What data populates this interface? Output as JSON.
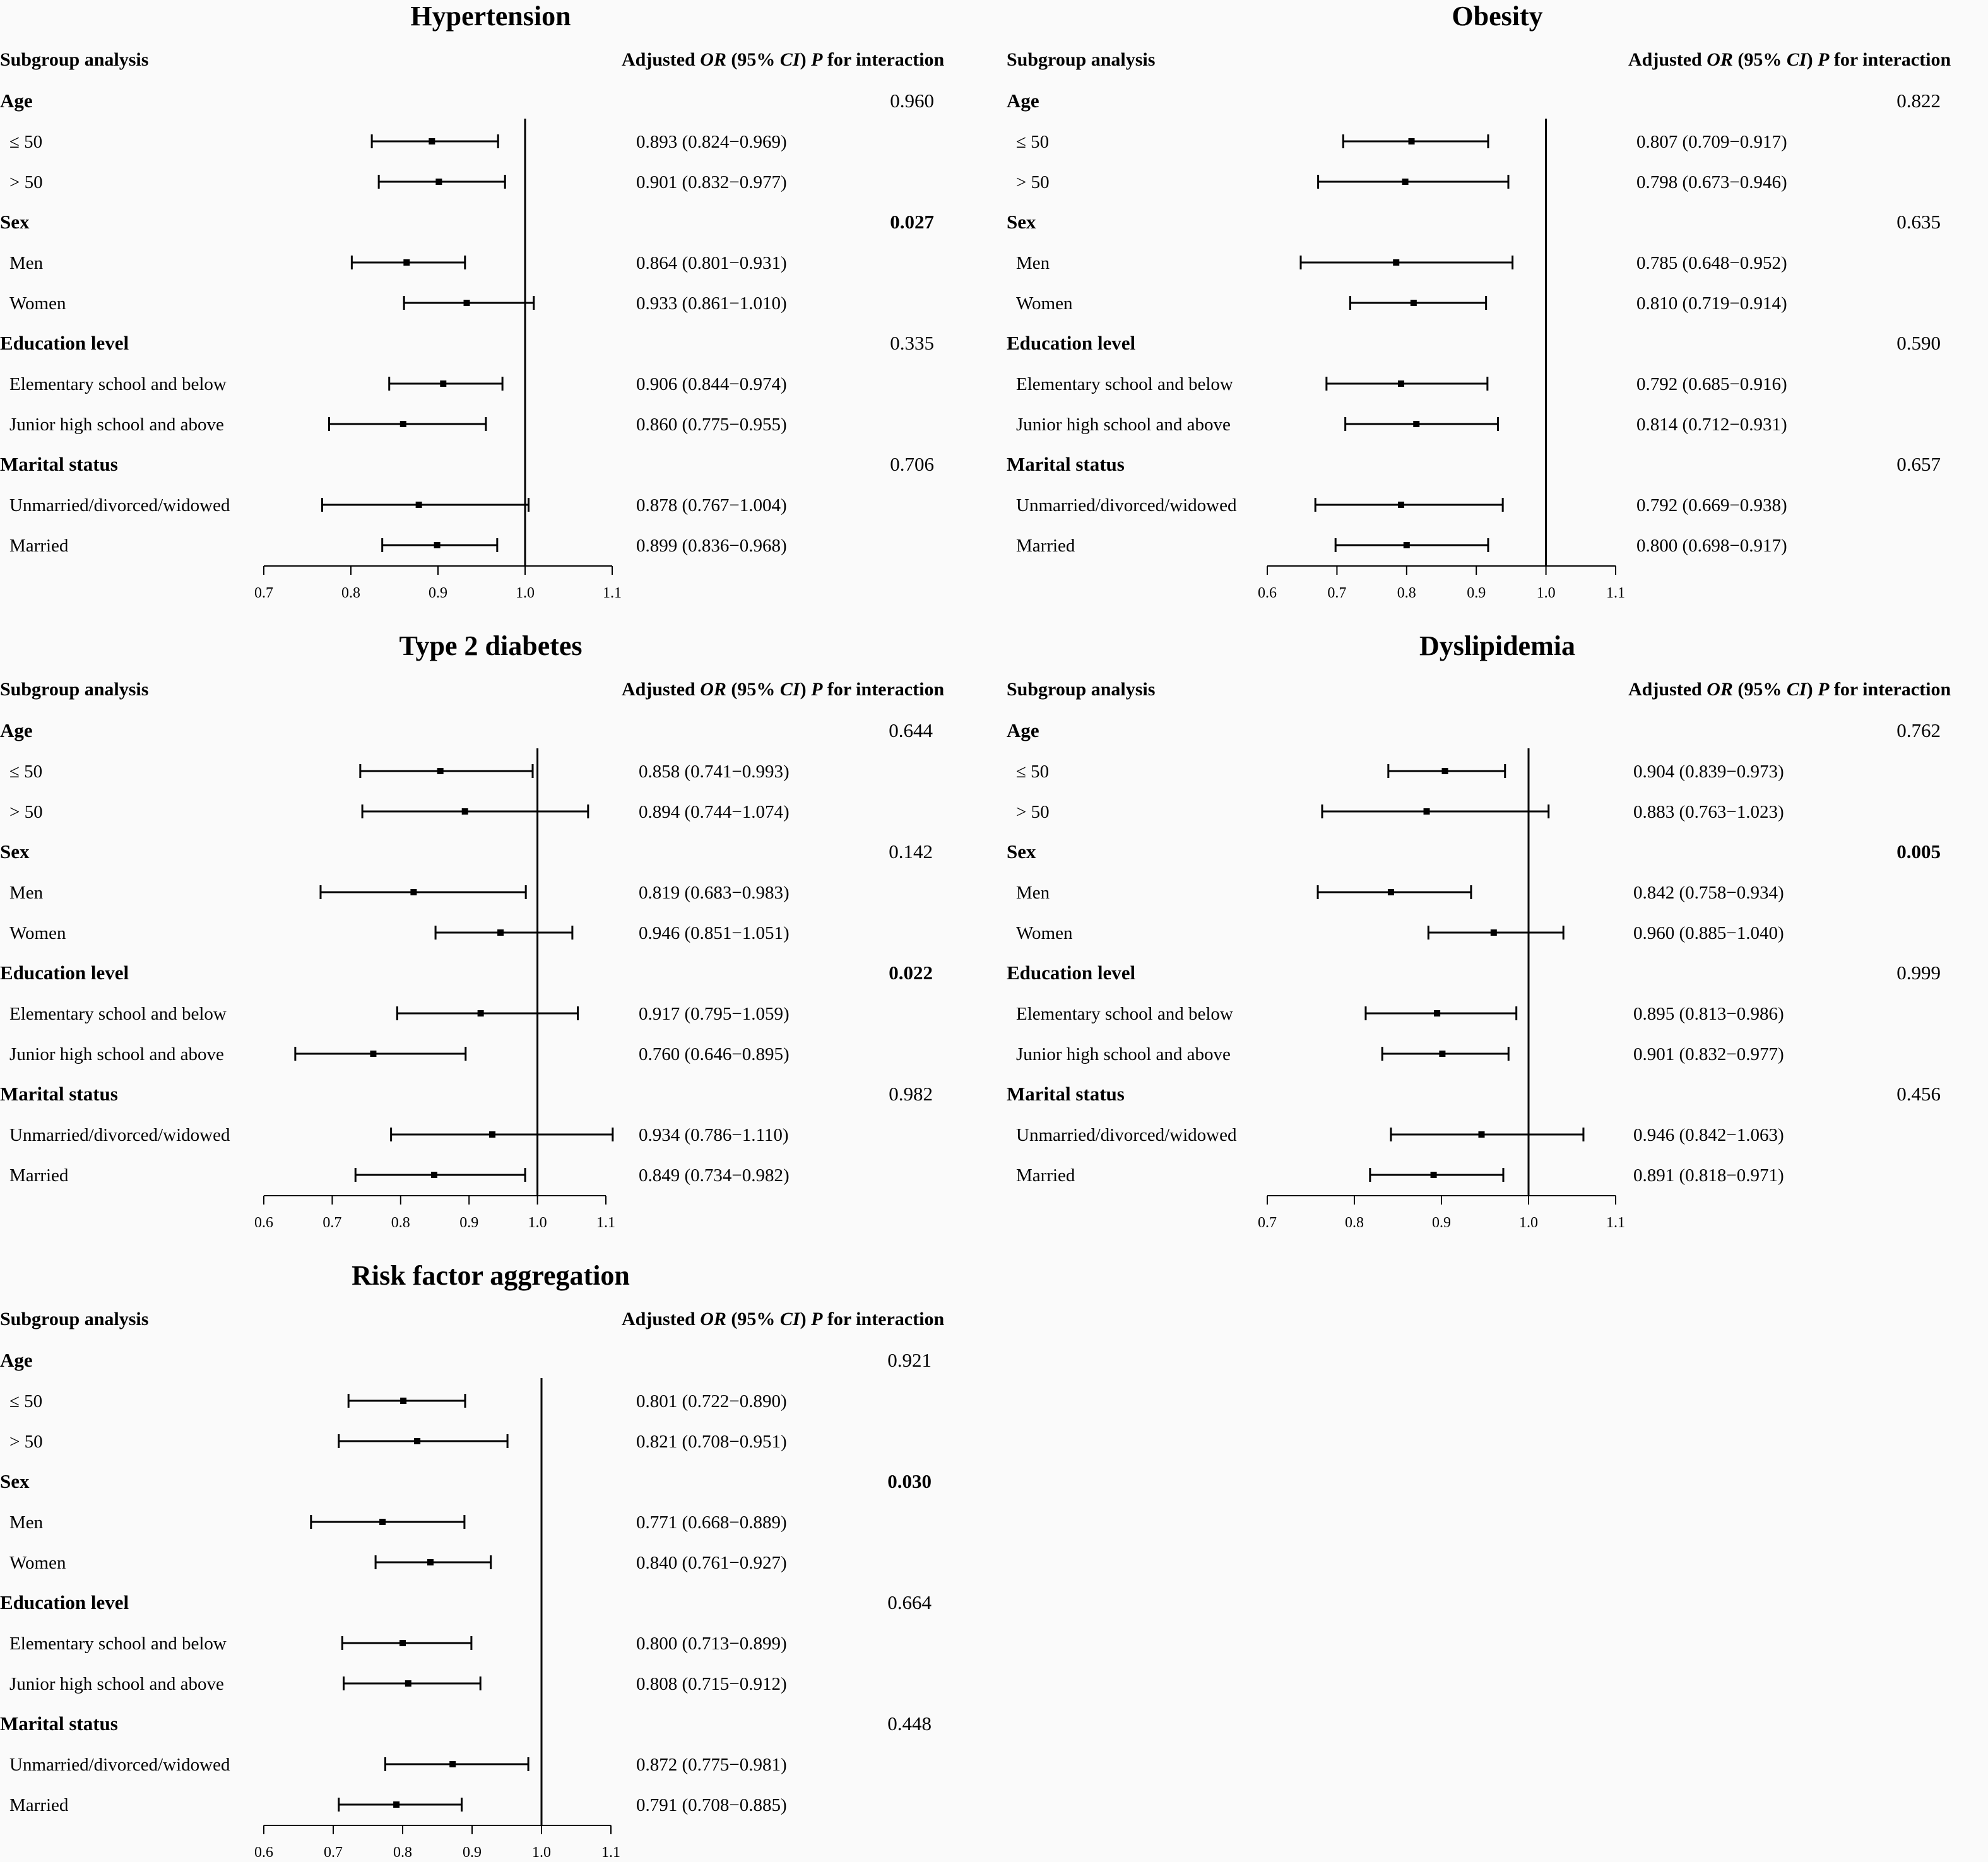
{
  "headers": {
    "subgroup": "Subgroup analysis",
    "or_prefix": "Adjusted ",
    "or_italic": "OR",
    "ci_open": " (95% ",
    "ci_italic": "CI",
    "ci_close": ") ",
    "p_italic": "P",
    "p_suffix": " for interaction"
  },
  "chart_data": [
    {
      "type": "forest",
      "title": "Hypertension",
      "axis": {
        "min": 0.7,
        "max": 1.1,
        "ticks": [
          "0.7",
          "0.8",
          "0.9",
          "1.0",
          "1.1"
        ],
        "ref": 1.0
      },
      "groups": [
        {
          "name": "Age",
          "p": "0.960",
          "p_bold": false,
          "rows": [
            {
              "label": "≤ 50",
              "or": 0.893,
              "lo": 0.824,
              "hi": 0.969,
              "text": "0.893 (0.824−0.969)"
            },
            {
              "label": "> 50",
              "or": 0.901,
              "lo": 0.832,
              "hi": 0.977,
              "text": "0.901 (0.832−0.977)"
            }
          ]
        },
        {
          "name": "Sex",
          "p": "0.027",
          "p_bold": true,
          "rows": [
            {
              "label": "Men",
              "or": 0.864,
              "lo": 0.801,
              "hi": 0.931,
              "text": "0.864 (0.801−0.931)"
            },
            {
              "label": "Women",
              "or": 0.933,
              "lo": 0.861,
              "hi": 1.01,
              "text": "0.933 (0.861−1.010)"
            }
          ]
        },
        {
          "name": "Education level",
          "p": "0.335",
          "p_bold": false,
          "rows": [
            {
              "label": "Elementary school and below",
              "or": 0.906,
              "lo": 0.844,
              "hi": 0.974,
              "text": "0.906 (0.844−0.974)"
            },
            {
              "label": "Junior high school and above",
              "or": 0.86,
              "lo": 0.775,
              "hi": 0.955,
              "text": "0.860 (0.775−0.955)"
            }
          ]
        },
        {
          "name": "Marital status",
          "p": "0.706",
          "p_bold": false,
          "rows": [
            {
              "label": "Unmarried/divorced/widowed",
              "or": 0.878,
              "lo": 0.767,
              "hi": 1.004,
              "text": "0.878 (0.767−1.004)"
            },
            {
              "label": "Married",
              "or": 0.899,
              "lo": 0.836,
              "hi": 0.968,
              "text": "0.899 (0.836−0.968)"
            }
          ]
        }
      ]
    },
    {
      "type": "forest",
      "title": "Obesity",
      "axis": {
        "min": 0.6,
        "max": 1.1,
        "ticks": [
          "0.6",
          "0.7",
          "0.8",
          "0.9",
          "1.0",
          "1.1"
        ],
        "ref": 1.0
      },
      "groups": [
        {
          "name": "Age",
          "p": "0.822",
          "p_bold": false,
          "rows": [
            {
              "label": "≤ 50",
              "or": 0.807,
              "lo": 0.709,
              "hi": 0.917,
              "text": "0.807 (0.709−0.917)"
            },
            {
              "label": "> 50",
              "or": 0.798,
              "lo": 0.673,
              "hi": 0.946,
              "text": "0.798 (0.673−0.946)"
            }
          ]
        },
        {
          "name": "Sex",
          "p": "0.635",
          "p_bold": false,
          "rows": [
            {
              "label": "Men",
              "or": 0.785,
              "lo": 0.648,
              "hi": 0.952,
              "text": "0.785 (0.648−0.952)"
            },
            {
              "label": "Women",
              "or": 0.81,
              "lo": 0.719,
              "hi": 0.914,
              "text": "0.810 (0.719−0.914)"
            }
          ]
        },
        {
          "name": "Education level",
          "p": "0.590",
          "p_bold": false,
          "rows": [
            {
              "label": "Elementary school and below",
              "or": 0.792,
              "lo": 0.685,
              "hi": 0.916,
              "text": "0.792 (0.685−0.916)"
            },
            {
              "label": "Junior high school and above",
              "or": 0.814,
              "lo": 0.712,
              "hi": 0.931,
              "text": "0.814 (0.712−0.931)"
            }
          ]
        },
        {
          "name": "Marital status",
          "p": "0.657",
          "p_bold": false,
          "rows": [
            {
              "label": "Unmarried/divorced/widowed",
              "or": 0.792,
              "lo": 0.669,
              "hi": 0.938,
              "text": "0.792 (0.669−0.938)"
            },
            {
              "label": "Married",
              "or": 0.8,
              "lo": 0.698,
              "hi": 0.917,
              "text": "0.800 (0.698−0.917)"
            }
          ]
        }
      ]
    },
    {
      "type": "forest",
      "title": "Type 2 diabetes",
      "axis": {
        "min": 0.6,
        "max": 1.1,
        "ticks": [
          "0.6",
          "0.7",
          "0.8",
          "0.9",
          "1.0",
          "1.1"
        ],
        "ref": 1.0
      },
      "groups": [
        {
          "name": "Age",
          "p": "0.644",
          "p_bold": false,
          "rows": [
            {
              "label": "≤ 50",
              "or": 0.858,
              "lo": 0.741,
              "hi": 0.993,
              "text": "0.858 (0.741−0.993)"
            },
            {
              "label": "> 50",
              "or": 0.894,
              "lo": 0.744,
              "hi": 1.074,
              "text": "0.894 (0.744−1.074)"
            }
          ]
        },
        {
          "name": "Sex",
          "p": "0.142",
          "p_bold": false,
          "rows": [
            {
              "label": "Men",
              "or": 0.819,
              "lo": 0.683,
              "hi": 0.983,
              "text": "0.819 (0.683−0.983)"
            },
            {
              "label": "Women",
              "or": 0.946,
              "lo": 0.851,
              "hi": 1.051,
              "text": "0.946 (0.851−1.051)"
            }
          ]
        },
        {
          "name": "Education level",
          "p": "0.022",
          "p_bold": true,
          "rows": [
            {
              "label": "Elementary school and below",
              "or": 0.917,
              "lo": 0.795,
              "hi": 1.059,
              "text": "0.917 (0.795−1.059)"
            },
            {
              "label": "Junior high school and above",
              "or": 0.76,
              "lo": 0.646,
              "hi": 0.895,
              "text": "0.760 (0.646−0.895)"
            }
          ]
        },
        {
          "name": "Marital status",
          "p": "0.982",
          "p_bold": false,
          "rows": [
            {
              "label": "Unmarried/divorced/widowed",
              "or": 0.934,
              "lo": 0.786,
              "hi": 1.11,
              "text": "0.934 (0.786−1.110)"
            },
            {
              "label": "Married",
              "or": 0.849,
              "lo": 0.734,
              "hi": 0.982,
              "text": "0.849 (0.734−0.982)"
            }
          ]
        }
      ]
    },
    {
      "type": "forest",
      "title": "Dyslipidemia",
      "axis": {
        "min": 0.7,
        "max": 1.1,
        "ticks": [
          "0.7",
          "0.8",
          "0.9",
          "1.0",
          "1.1"
        ],
        "ref": 1.0
      },
      "groups": [
        {
          "name": "Age",
          "p": "0.762",
          "p_bold": false,
          "rows": [
            {
              "label": "≤ 50",
              "or": 0.904,
              "lo": 0.839,
              "hi": 0.973,
              "text": "0.904 (0.839−0.973)"
            },
            {
              "label": "> 50",
              "or": 0.883,
              "lo": 0.763,
              "hi": 1.023,
              "text": "0.883 (0.763−1.023)"
            }
          ]
        },
        {
          "name": "Sex",
          "p": "0.005",
          "p_bold": true,
          "rows": [
            {
              "label": "Men",
              "or": 0.842,
              "lo": 0.758,
              "hi": 0.934,
              "text": "0.842 (0.758−0.934)"
            },
            {
              "label": "Women",
              "or": 0.96,
              "lo": 0.885,
              "hi": 1.04,
              "text": "0.960 (0.885−1.040)"
            }
          ]
        },
        {
          "name": "Education level",
          "p": "0.999",
          "p_bold": false,
          "rows": [
            {
              "label": "Elementary school and below",
              "or": 0.895,
              "lo": 0.813,
              "hi": 0.986,
              "text": "0.895 (0.813−0.986)"
            },
            {
              "label": "Junior high school and above",
              "or": 0.901,
              "lo": 0.832,
              "hi": 0.977,
              "text": "0.901 (0.832−0.977)"
            }
          ]
        },
        {
          "name": "Marital status",
          "p": "0.456",
          "p_bold": false,
          "rows": [
            {
              "label": "Unmarried/divorced/widowed",
              "or": 0.946,
              "lo": 0.842,
              "hi": 1.063,
              "text": "0.946 (0.842−1.063)"
            },
            {
              "label": "Married",
              "or": 0.891,
              "lo": 0.818,
              "hi": 0.971,
              "text": "0.891 (0.818−0.971)"
            }
          ]
        }
      ]
    },
    {
      "type": "forest",
      "title": "Risk factor aggregation",
      "axis": {
        "min": 0.6,
        "max": 1.1,
        "ticks": [
          "0.6",
          "0.7",
          "0.8",
          "0.9",
          "1.0",
          "1.1"
        ],
        "ref": 1.0
      },
      "groups": [
        {
          "name": "Age",
          "p": "0.921",
          "p_bold": false,
          "rows": [
            {
              "label": "≤ 50",
              "or": 0.801,
              "lo": 0.722,
              "hi": 0.89,
              "text": "0.801 (0.722−0.890)"
            },
            {
              "label": "> 50",
              "or": 0.821,
              "lo": 0.708,
              "hi": 0.951,
              "text": "0.821 (0.708−0.951)"
            }
          ]
        },
        {
          "name": "Sex",
          "p": "0.030",
          "p_bold": true,
          "rows": [
            {
              "label": "Men",
              "or": 0.771,
              "lo": 0.668,
              "hi": 0.889,
              "text": "0.771 (0.668−0.889)"
            },
            {
              "label": "Women",
              "or": 0.84,
              "lo": 0.761,
              "hi": 0.927,
              "text": "0.840 (0.761−0.927)"
            }
          ]
        },
        {
          "name": "Education level",
          "p": "0.664",
          "p_bold": false,
          "rows": [
            {
              "label": "Elementary school and below",
              "or": 0.8,
              "lo": 0.713,
              "hi": 0.899,
              "text": "0.800 (0.713−0.899)"
            },
            {
              "label": "Junior high school and above",
              "or": 0.808,
              "lo": 0.715,
              "hi": 0.912,
              "text": "0.808 (0.715−0.912)"
            }
          ]
        },
        {
          "name": "Marital status",
          "p": "0.448",
          "p_bold": false,
          "rows": [
            {
              "label": "Unmarried/divorced/widowed",
              "or": 0.872,
              "lo": 0.775,
              "hi": 0.981,
              "text": "0.872 (0.775−0.981)"
            },
            {
              "label": "Married",
              "or": 0.791,
              "lo": 0.708,
              "hi": 0.885,
              "text": "0.791 (0.708−0.885)"
            }
          ]
        }
      ]
    }
  ]
}
